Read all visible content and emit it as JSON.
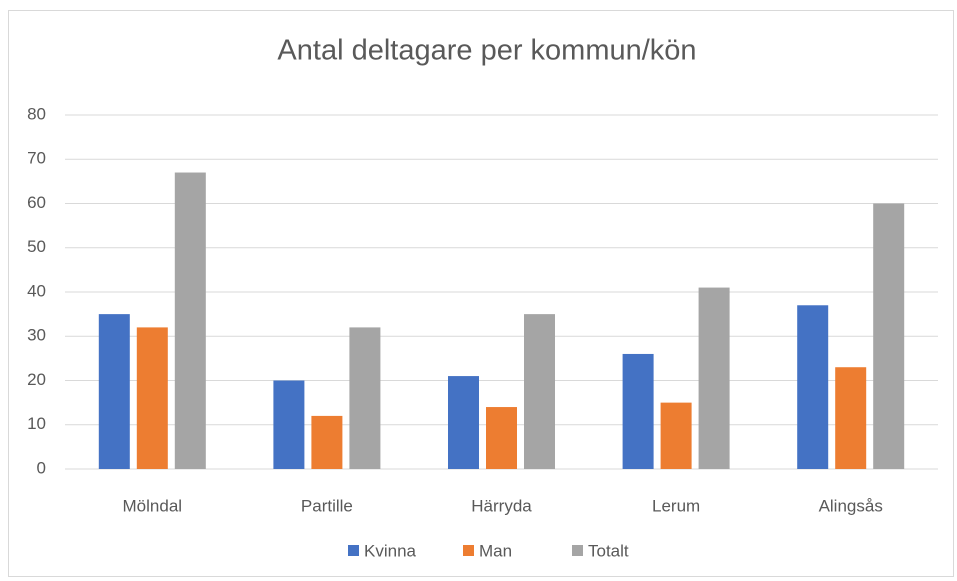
{
  "chart_data": {
    "type": "bar",
    "title": "Antal deltagare per kommun/kön",
    "categories": [
      "Mölndal",
      "Partille",
      "Härryda",
      "Lerum",
      "Alingsås"
    ],
    "series": [
      {
        "name": "Kvinna",
        "color": "#4472c4",
        "values": [
          35,
          20,
          21,
          26,
          37
        ]
      },
      {
        "name": "Man",
        "color": "#ed7d31",
        "values": [
          32,
          12,
          14,
          15,
          23
        ]
      },
      {
        "name": "Totalt",
        "color": "#a5a5a5",
        "values": [
          67,
          32,
          35,
          41,
          60
        ]
      }
    ],
    "ylim": [
      0,
      80
    ],
    "yticks": [
      0,
      10,
      20,
      30,
      40,
      50,
      60,
      70,
      80
    ],
    "grid": true,
    "legend": "bottom"
  }
}
